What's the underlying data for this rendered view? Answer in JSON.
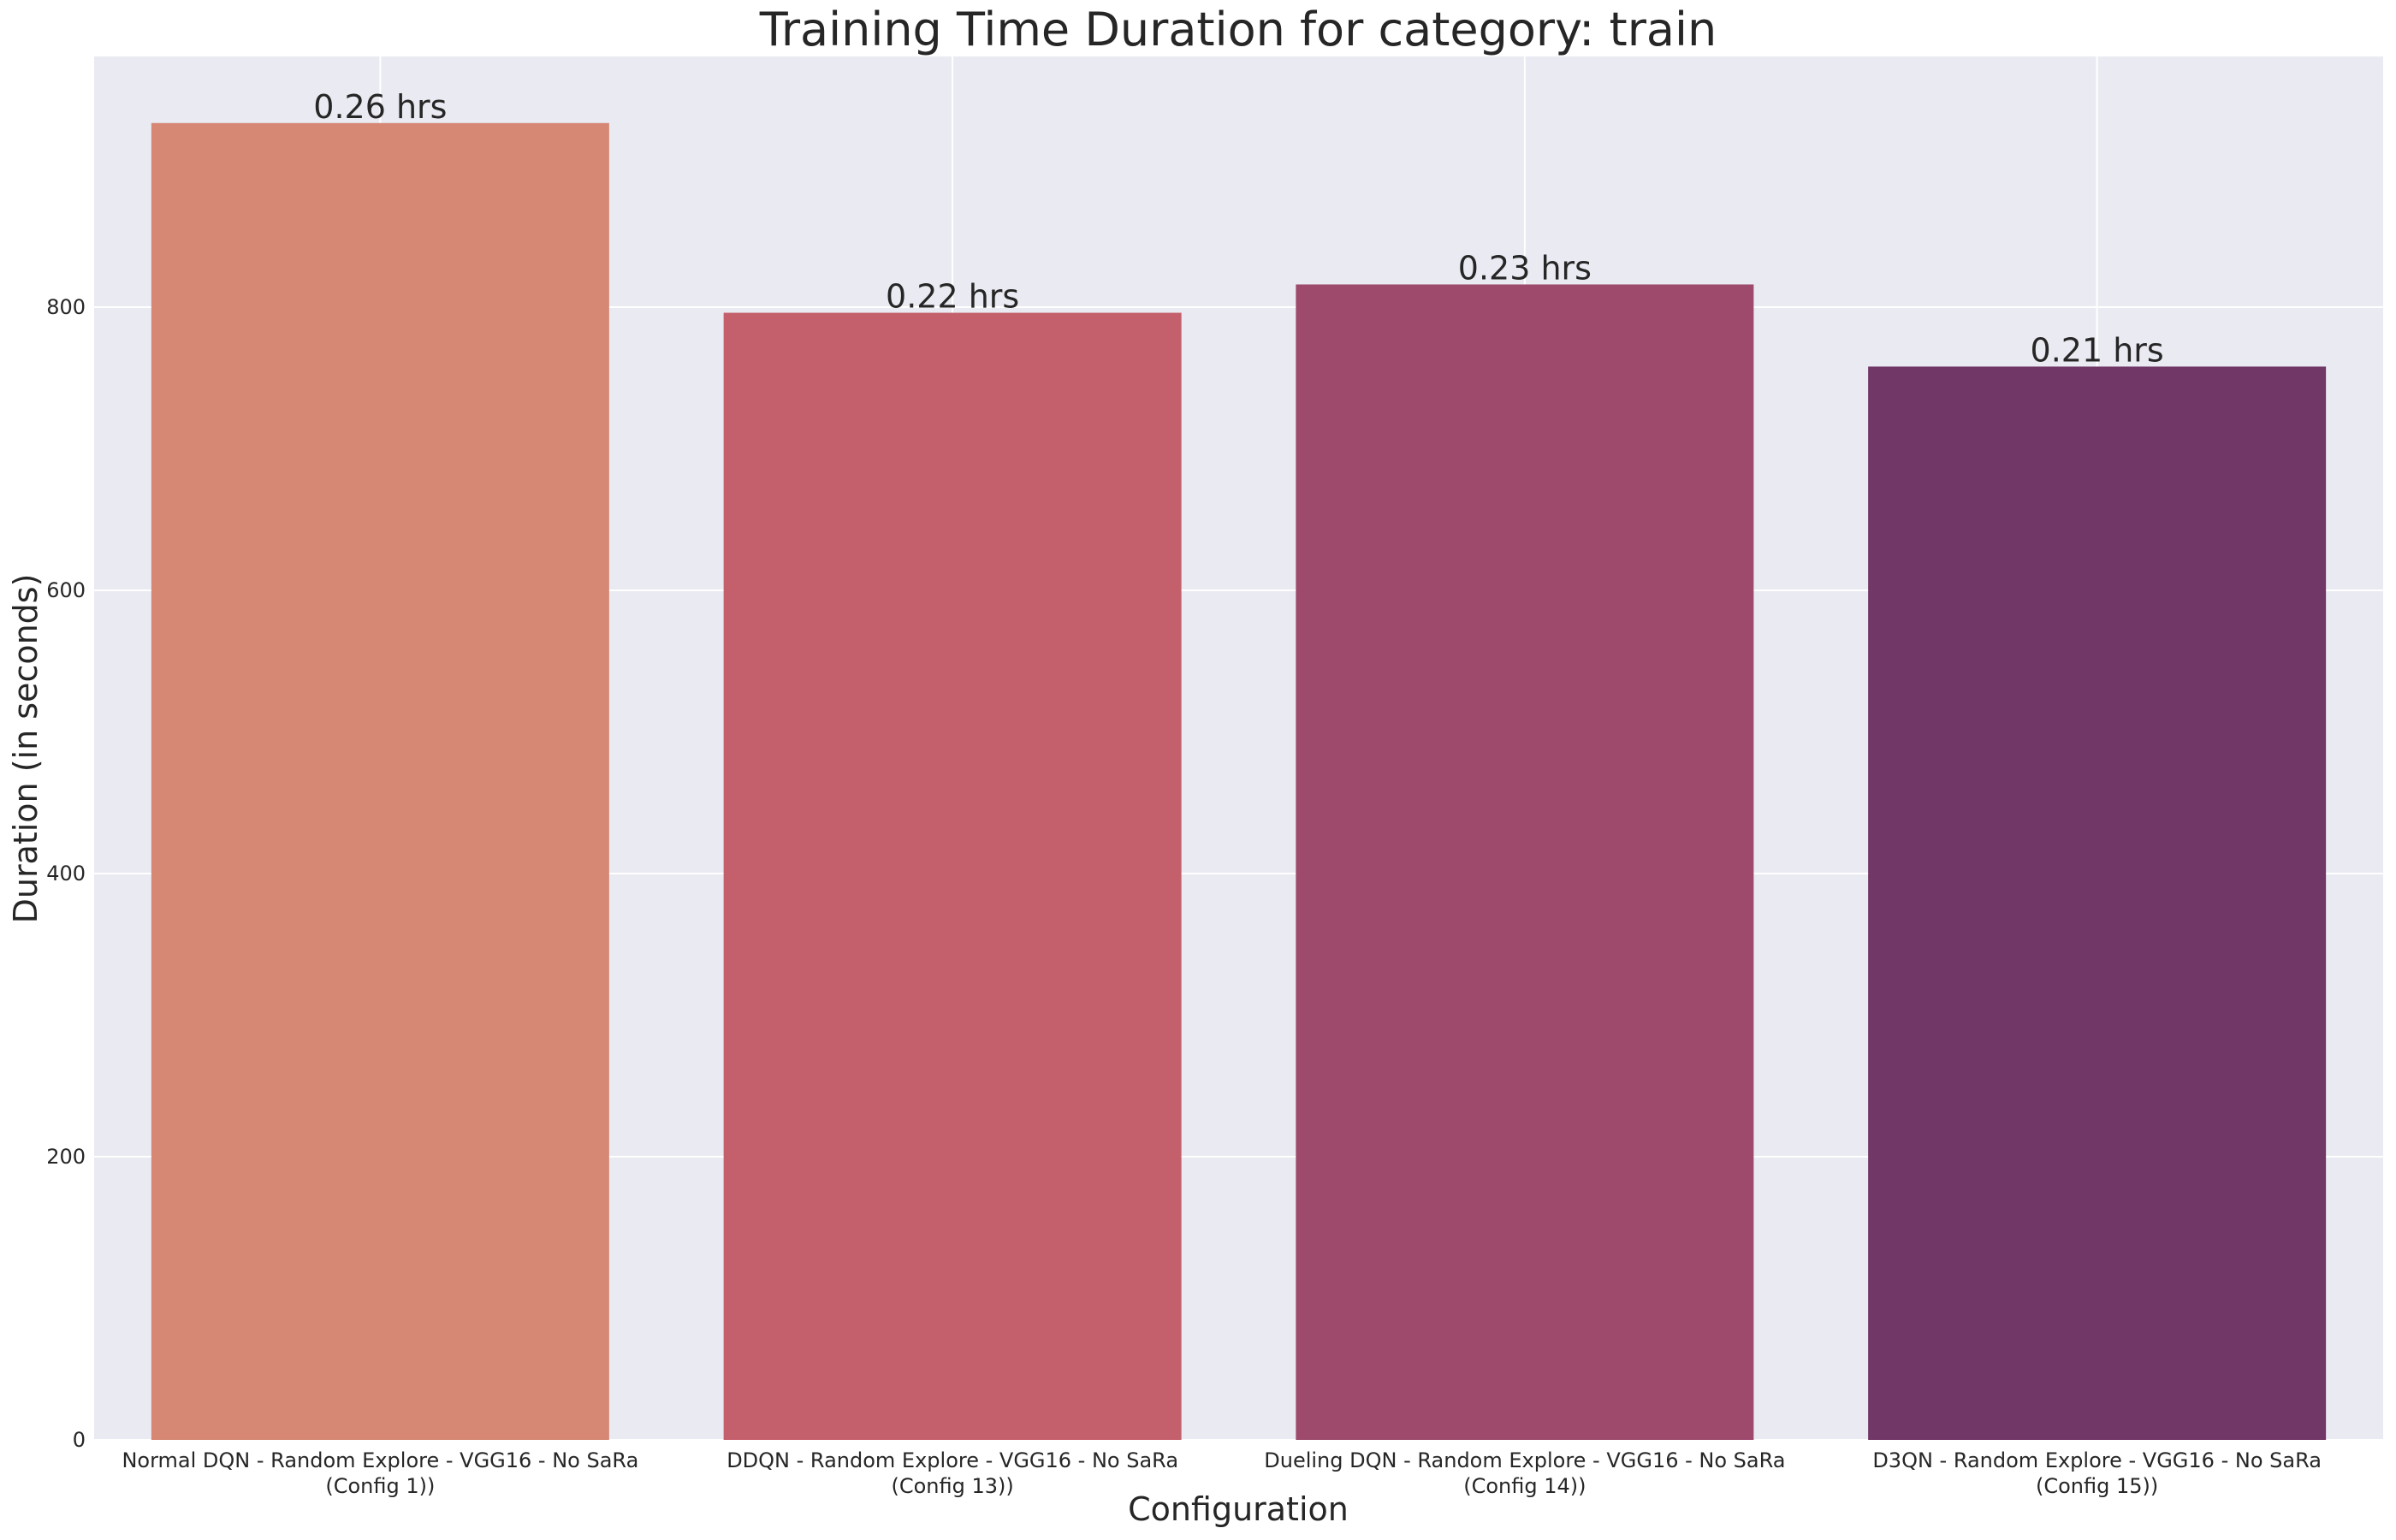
{
  "chart_data": {
    "type": "bar",
    "title": "Training Time Duration for category: train",
    "xlabel": "Configuration",
    "ylabel": "Duration (in seconds)",
    "categories": [
      [
        "Normal DQN - Random Explore - VGG16 - No SaRa",
        "(Config 1))"
      ],
      [
        "DDQN - Random Explore - VGG16 - No SaRa",
        "(Config 13))"
      ],
      [
        "Dueling DQN - Random Explore - VGG16 - No SaRa",
        "(Config 14))"
      ],
      [
        "D3QN - Random Explore - VGG16 - No SaRa",
        "(Config 15))"
      ]
    ],
    "values": [
      930,
      796,
      816,
      758
    ],
    "data_labels": [
      "0.26 hrs",
      "0.22 hrs",
      "0.23 hrs",
      "0.21 hrs"
    ],
    "colors": [
      "#d68875",
      "#c4606c",
      "#9d4a6d",
      "#713766"
    ],
    "ylim": [
      0,
      977
    ],
    "yticks": [
      0,
      200,
      400,
      600,
      800
    ],
    "grid": true,
    "background": "#eaeaf2"
  }
}
